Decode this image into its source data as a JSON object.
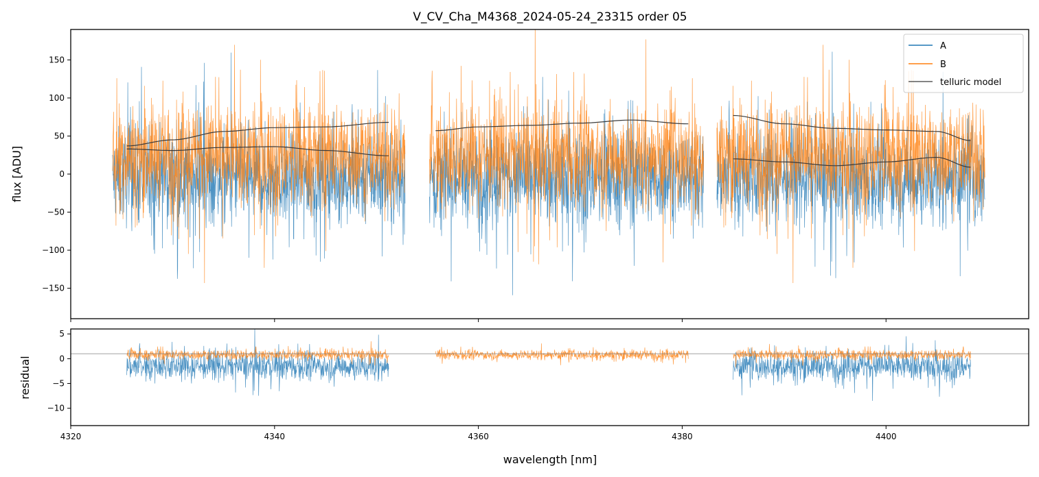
{
  "chart_data": {
    "type": "line",
    "title": "V_CV_Cha_M4368_2024-05-24_23315  order 05",
    "colors": {
      "A": "#1f77b4",
      "B": "#ff7f0e",
      "telluric": "#3a3a3a",
      "refline": "#808080"
    },
    "legend": {
      "position": "top-right",
      "entries": [
        "A",
        "B",
        "telluric model"
      ]
    },
    "xlabel": "wavelength [nm]",
    "xlim": [
      4320,
      4414
    ],
    "xticks": [
      4320,
      4340,
      4360,
      4380,
      4400
    ],
    "panels": {
      "flux": {
        "ylabel": "flux [ADU]",
        "ylim": [
          -190,
          190
        ],
        "yticks": [
          -150,
          -100,
          -50,
          0,
          50,
          100,
          150
        ],
        "series": [
          {
            "name": "A",
            "segments": [
              [
                4324.1,
                4352.8
              ],
              [
                4355.2,
                4382.1
              ],
              [
                4383.4,
                4409.7
              ]
            ],
            "center": -5,
            "spread": 55
          },
          {
            "name": "B",
            "segments": [
              [
                4324.1,
                4352.8
              ],
              [
                4355.2,
                4382.1
              ],
              [
                4383.4,
                4409.7
              ]
            ],
            "center": 25,
            "spread": 60
          }
        ],
        "telluric_model": [
          {
            "x": [
              4325.5,
              4330,
              4335,
              4340,
              4345,
              4351.2
            ],
            "y": [
              37,
              45,
              56,
              61,
              62,
              68
            ]
          },
          {
            "x": [
              4325.5,
              4330,
              4335,
              4340,
              4345,
              4351.2
            ],
            "y": [
              33,
              31,
              35,
              36,
              31,
              24
            ]
          },
          {
            "x": [
              4355.8,
              4360,
              4365,
              4370,
              4375,
              4380.6
            ],
            "y": [
              57,
              62,
              64,
              67,
              71,
              66
            ]
          },
          {
            "x": [
              4385,
              4390,
              4395,
              4400,
              4405,
              4408.3
            ],
            "y": [
              77,
              66,
              60,
              58,
              56,
              44
            ]
          },
          {
            "x": [
              4385,
              4390,
              4395,
              4400,
              4405,
              4408.3
            ],
            "y": [
              20,
              16,
              11,
              16,
              22,
              9
            ]
          }
        ]
      },
      "residual": {
        "ylabel": "residual",
        "ylim": [
          -13.5,
          6
        ],
        "yticks": [
          -10,
          -5,
          0,
          5
        ],
        "reference_line": 1,
        "series": [
          {
            "name": "A",
            "segments": [
              [
                4325.5,
                4351.2
              ],
              [
                4385,
                4408.3
              ]
            ],
            "center": -1.5,
            "spread": 2.5
          },
          {
            "name": "B",
            "segments": [
              [
                4325.5,
                4351.2
              ],
              [
                4355.8,
                4380.6
              ],
              [
                4385,
                4408.3
              ]
            ],
            "center": 0.8,
            "spread": 0.9
          }
        ]
      }
    }
  }
}
